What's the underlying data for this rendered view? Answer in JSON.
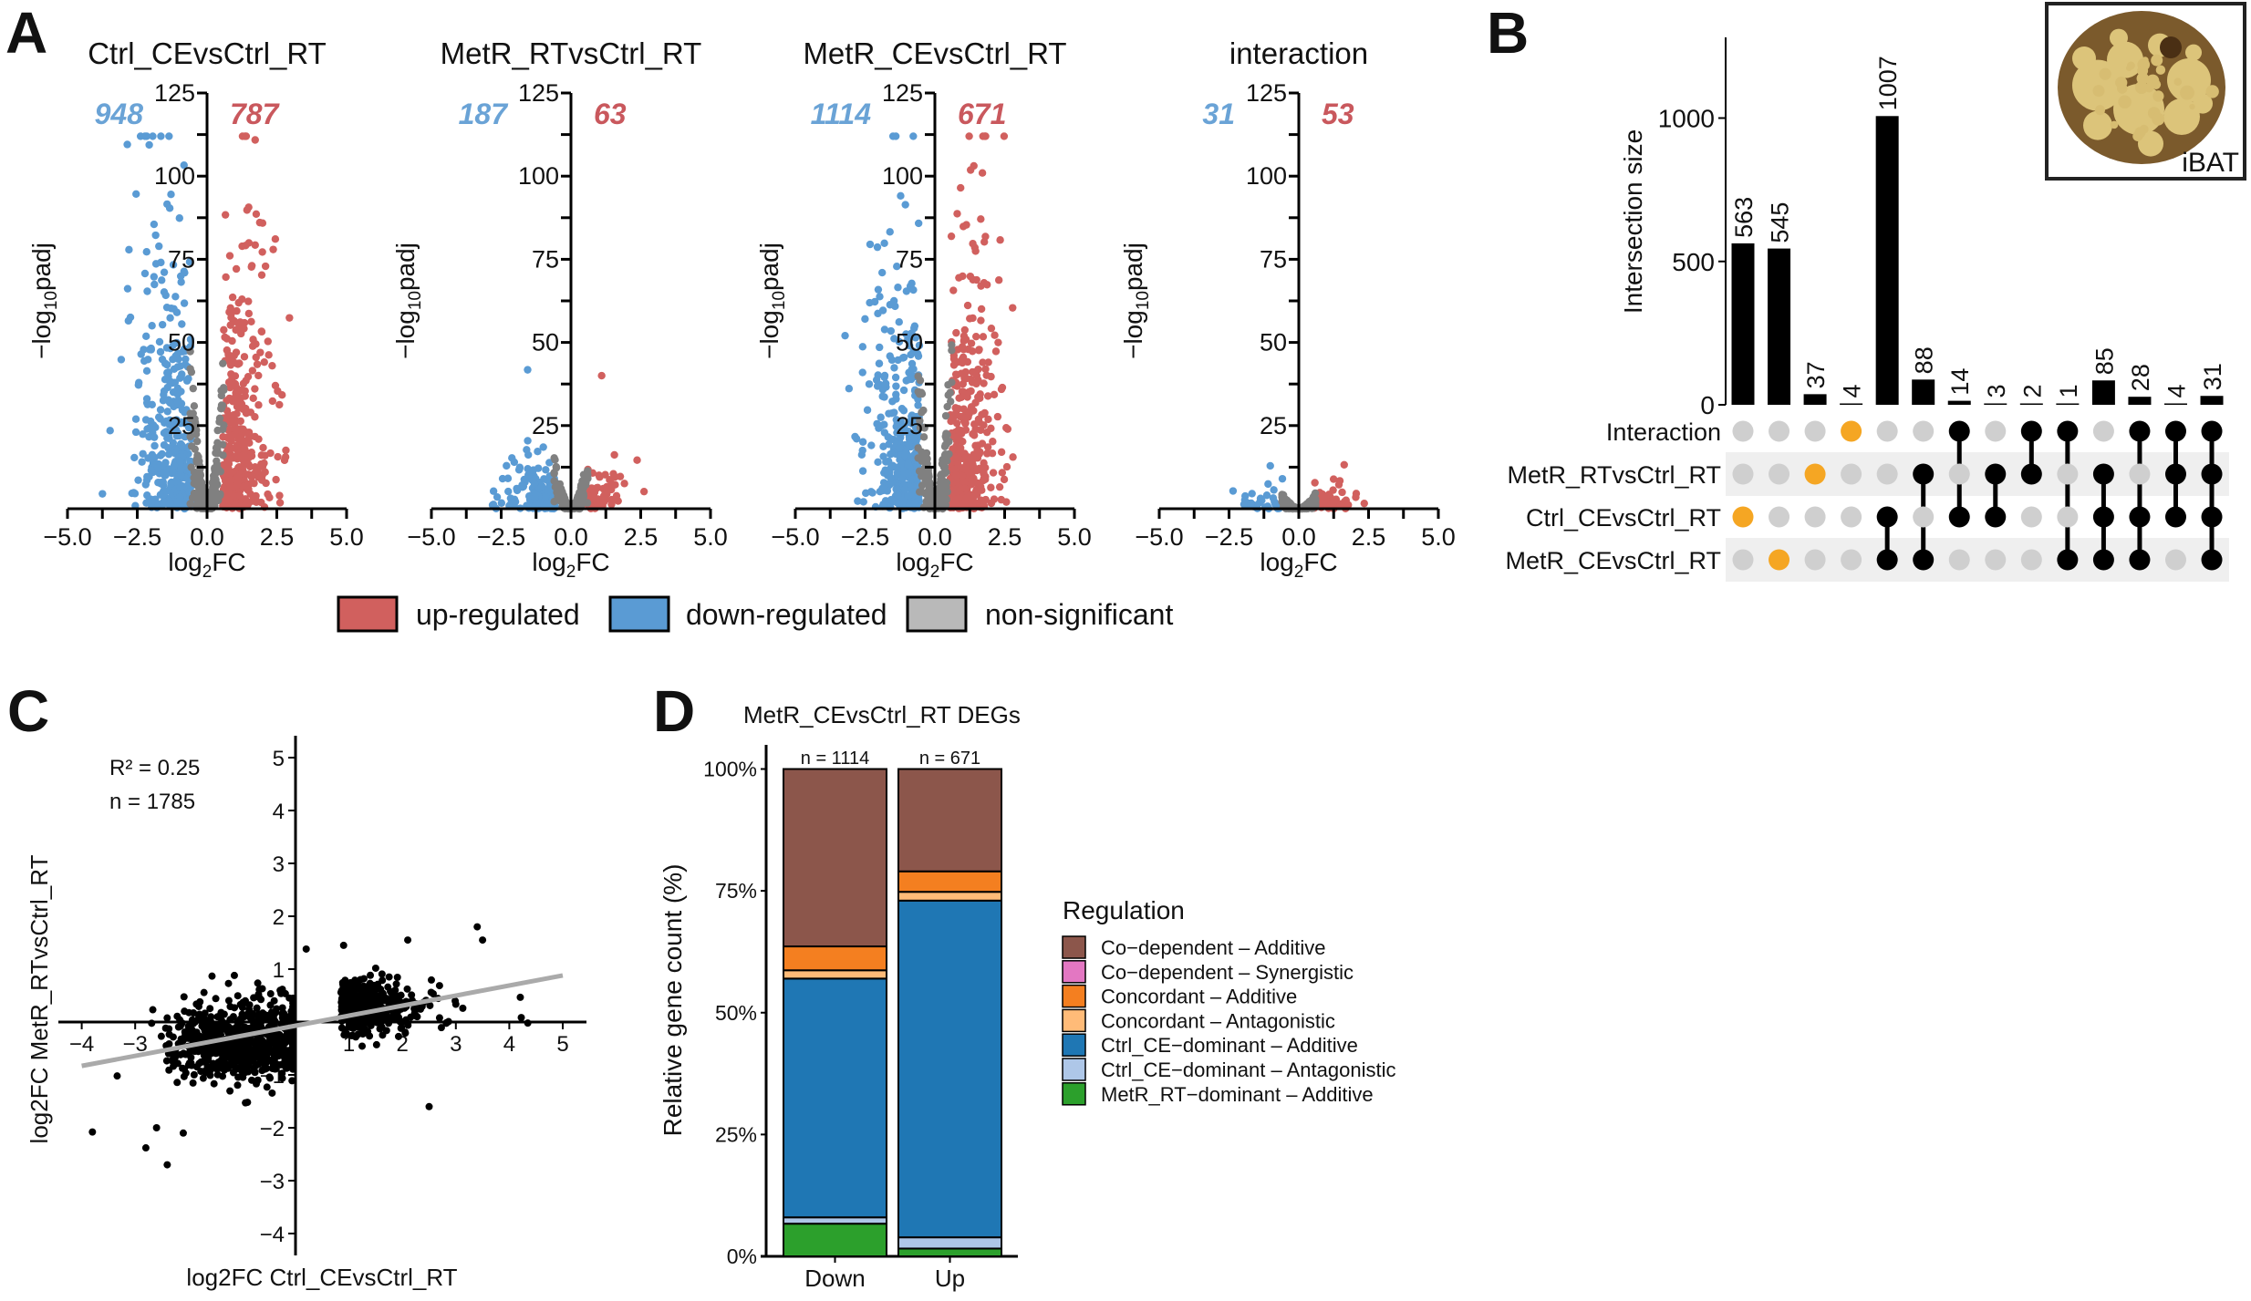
{
  "panel_labels": {
    "a": "A",
    "b": "B",
    "c": "C",
    "d": "D"
  },
  "volcano_legend": [
    {
      "label": "up-regulated",
      "color": "#d1605e"
    },
    {
      "label": "down-regulated",
      "color": "#5a9bd4"
    },
    {
      "label": "non-significant",
      "color": "#b9b9b9"
    }
  ],
  "chart_data": [
    {
      "panel": "A",
      "type": "scatter",
      "title": "Ctrl_CEvsCtrl_RT",
      "down_count": "948",
      "up_count": "787",
      "xlabel": {
        "pre": "log",
        "sub": "2",
        "post": "FC"
      },
      "ylabel": {
        "pre": "−log",
        "sub": "10",
        "post": "padj"
      },
      "xlim": [
        -5,
        5
      ],
      "ylim": [
        0,
        125
      ],
      "xticks": [
        "−5.0",
        "−2.5",
        "0.0",
        "2.5",
        "5.0"
      ],
      "yticks": [
        "25",
        "50",
        "75",
        "100",
        "125"
      ],
      "colors": {
        "up": "#d1605e",
        "down": "#5a9bd4",
        "ns": "#808080",
        "up_label": "#c9585d",
        "down_label": "#6aa3d6"
      }
    },
    {
      "panel": "A",
      "type": "scatter",
      "title": "MetR_RTvsCtrl_RT",
      "down_count": "187",
      "up_count": "63",
      "xlabel": {
        "pre": "log",
        "sub": "2",
        "post": "FC"
      },
      "ylabel": {
        "pre": "−log",
        "sub": "10",
        "post": "padj"
      },
      "xlim": [
        -5,
        5
      ],
      "ylim": [
        0,
        125
      ],
      "xticks": [
        "−5.0",
        "−2.5",
        "0.0",
        "2.5",
        "5.0"
      ],
      "yticks": [
        "25",
        "50",
        "75",
        "100",
        "125"
      ],
      "colors": {
        "up": "#d1605e",
        "down": "#5a9bd4",
        "ns": "#808080",
        "up_label": "#c9585d",
        "down_label": "#6aa3d6"
      }
    },
    {
      "panel": "A",
      "type": "scatter",
      "title": "MetR_CEvsCtrl_RT",
      "down_count": "1114",
      "up_count": "671",
      "xlabel": {
        "pre": "log",
        "sub": "2",
        "post": "FC"
      },
      "ylabel": {
        "pre": "−log",
        "sub": "10",
        "post": "padj"
      },
      "xlim": [
        -5,
        5
      ],
      "ylim": [
        0,
        125
      ],
      "xticks": [
        "−5.0",
        "−2.5",
        "0.0",
        "2.5",
        "5.0"
      ],
      "yticks": [
        "25",
        "50",
        "75",
        "100",
        "125"
      ],
      "colors": {
        "up": "#d1605e",
        "down": "#5a9bd4",
        "ns": "#808080",
        "up_label": "#c9585d",
        "down_label": "#6aa3d6"
      }
    },
    {
      "panel": "A",
      "type": "scatter",
      "title": "interaction",
      "down_count": "31",
      "up_count": "53",
      "xlabel": {
        "pre": "log",
        "sub": "2",
        "post": "FC"
      },
      "ylabel": {
        "pre": "−log",
        "sub": "10",
        "post": "padj"
      },
      "xlim": [
        -5,
        5
      ],
      "ylim": [
        0,
        125
      ],
      "xticks": [
        "−5.0",
        "−2.5",
        "0.0",
        "2.5",
        "5.0"
      ],
      "yticks": [
        "25",
        "50",
        "75",
        "100",
        "125"
      ],
      "colors": {
        "up": "#d1605e",
        "down": "#5a9bd4",
        "ns": "#808080",
        "up_label": "#c9585d",
        "down_label": "#6aa3d6"
      }
    },
    {
      "panel": "B",
      "type": "bar",
      "subtype": "upset",
      "ylabel": "Intersection size",
      "yticks": [
        "0",
        "500",
        "1000"
      ],
      "ylim": [
        0,
        1280
      ],
      "sets": [
        "Interaction",
        "MetR_RTvsCtrl_RT",
        "Ctrl_CEvsCtrl_RT",
        "MetR_CEvsCtrl_RT"
      ],
      "intersections": [
        {
          "size": 563,
          "label": "563",
          "sets": [
            "Ctrl_CEvsCtrl_RT"
          ],
          "highlight": true
        },
        {
          "size": 545,
          "label": "545",
          "sets": [
            "MetR_CEvsCtrl_RT"
          ],
          "highlight": true
        },
        {
          "size": 37,
          "label": "37",
          "sets": [
            "MetR_RTvsCtrl_RT"
          ],
          "highlight": true
        },
        {
          "size": 4,
          "label": "4",
          "sets": [
            "Interaction"
          ],
          "highlight": true
        },
        {
          "size": 1007,
          "label": "1007",
          "sets": [
            "Ctrl_CEvsCtrl_RT",
            "MetR_CEvsCtrl_RT"
          ],
          "highlight": false
        },
        {
          "size": 88,
          "label": "88",
          "sets": [
            "MetR_RTvsCtrl_RT",
            "MetR_CEvsCtrl_RT"
          ],
          "highlight": false
        },
        {
          "size": 14,
          "label": "14",
          "sets": [
            "Interaction",
            "Ctrl_CEvsCtrl_RT"
          ],
          "highlight": false
        },
        {
          "size": 3,
          "label": "3",
          "sets": [
            "MetR_RTvsCtrl_RT",
            "Ctrl_CEvsCtrl_RT"
          ],
          "highlight": false
        },
        {
          "size": 2,
          "label": "2",
          "sets": [
            "Interaction",
            "MetR_RTvsCtrl_RT"
          ],
          "highlight": false
        },
        {
          "size": 1,
          "label": "1",
          "sets": [
            "Interaction",
            "MetR_CEvsCtrl_RT"
          ],
          "highlight": false
        },
        {
          "size": 85,
          "label": "85",
          "sets": [
            "MetR_RTvsCtrl_RT",
            "Ctrl_CEvsCtrl_RT",
            "MetR_CEvsCtrl_RT"
          ],
          "highlight": false
        },
        {
          "size": 28,
          "label": "28",
          "sets": [
            "Interaction",
            "Ctrl_CEvsCtrl_RT",
            "MetR_CEvsCtrl_RT"
          ],
          "highlight": false
        },
        {
          "size": 4,
          "label": "4",
          "sets": [
            "Interaction",
            "MetR_RTvsCtrl_RT",
            "Ctrl_CEvsCtrl_RT"
          ],
          "highlight": false
        },
        {
          "size": 31,
          "label": "31",
          "sets": [
            "Interaction",
            "MetR_RTvsCtrl_RT",
            "Ctrl_CEvsCtrl_RT",
            "MetR_CEvsCtrl_RT"
          ],
          "highlight": false
        }
      ],
      "colors": {
        "bar": "#000000",
        "active": "#000000",
        "highlight": "#f5a623",
        "inactive": "#cfcfcf",
        "band": "#efefef"
      },
      "inset_label": "iBAT"
    },
    {
      "panel": "C",
      "type": "scatter",
      "xlabel": "log2FC Ctrl_CEvsCtrl_RT",
      "ylabel": "log2FC MetR_RTvsCtrl_RT",
      "xlim": [
        -4.5,
        5.5
      ],
      "ylim": [
        -4.5,
        5.5
      ],
      "xticks": [
        "−4",
        "−3",
        "−2",
        "−1",
        "1",
        "2",
        "3",
        "4",
        "5"
      ],
      "xtick_values": [
        -4,
        -3,
        -2,
        -1,
        1,
        2,
        3,
        4,
        5
      ],
      "yticks": [
        "−4",
        "−3",
        "−2",
        "−1",
        "1",
        "2",
        "3",
        "4",
        "5"
      ],
      "ytick_values": [
        -4,
        -3,
        -2,
        -1,
        1,
        2,
        3,
        4,
        5
      ],
      "annotations": {
        "r2": "R² = 0.25",
        "n": "n = 1785"
      },
      "fit_line": {
        "x": [
          -4,
          5
        ],
        "y": [
          -0.83,
          0.88
        ],
        "color": "#aaaaaa"
      },
      "point_color": "#000000"
    },
    {
      "panel": "D",
      "type": "bar",
      "subtype": "stacked-percent",
      "title": "MetR_CEvsCtrl_RT DEGs",
      "ylabel": "Relative gene count (%)",
      "categories": [
        "Down",
        "Up"
      ],
      "n_labels": [
        "n = 1114",
        "n = 671"
      ],
      "yticks": [
        "0%",
        "25%",
        "50%",
        "75%",
        "100%"
      ],
      "ylim": [
        0,
        100
      ],
      "legend_title": "Regulation",
      "series": [
        {
          "name": "Co−dependent – Additive",
          "color": "#8c564b",
          "values": [
            36.4,
            21.0
          ]
        },
        {
          "name": "Co−dependent – Synergistic",
          "color": "#e377c2",
          "values": [
            0,
            0
          ]
        },
        {
          "name": "Concordant – Additive",
          "color": "#f47f20",
          "values": [
            4.9,
            4.2
          ]
        },
        {
          "name": "Concordant – Antagonistic",
          "color": "#ffbb78",
          "values": [
            1.7,
            1.8
          ]
        },
        {
          "name": "Ctrl_CE−dominant – Additive",
          "color": "#1f77b4",
          "values": [
            49.0,
            69.1
          ]
        },
        {
          "name": "Ctrl_CE−dominant – Antagonistic",
          "color": "#aec7e8",
          "values": [
            1.3,
            2.3
          ]
        },
        {
          "name": "MetR_RT−dominant – Additive",
          "color": "#2ca02c",
          "values": [
            6.7,
            1.6
          ]
        }
      ]
    }
  ]
}
